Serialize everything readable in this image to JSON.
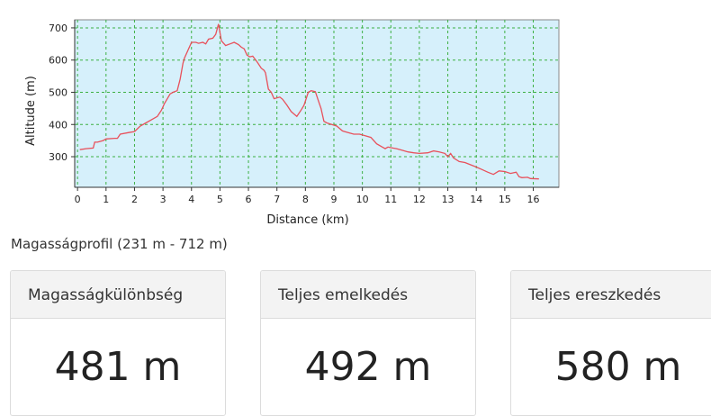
{
  "chart_data": {
    "type": "line",
    "xlabel": "Distance (km)",
    "ylabel": "Altitude (m)",
    "xlim": [
      -0.1,
      16.9
    ],
    "ylim": [
      205,
      725
    ],
    "xticks": [
      "0",
      "1",
      "2",
      "3",
      "4",
      "5",
      "6",
      "7",
      "8",
      "9",
      "10",
      "11",
      "12",
      "13",
      "14",
      "15",
      "16"
    ],
    "yticks": [
      "300",
      "400",
      "500",
      "600",
      "700"
    ],
    "grid": true,
    "colors": {
      "line": "#e8505b",
      "plot_bg": "#d6f0fb",
      "grid": "#3cb043"
    },
    "series": [
      {
        "x": [
          0.08,
          0.3,
          0.55,
          0.6,
          0.7,
          0.9,
          1.0,
          1.3,
          1.4,
          1.5,
          1.8,
          2.0,
          2.2,
          2.4,
          2.6,
          2.8,
          2.95,
          3.05,
          3.25,
          3.35,
          3.5,
          3.6,
          3.7,
          3.75,
          4.0,
          4.15,
          4.25,
          4.4,
          4.5,
          4.6,
          4.75,
          4.85,
          4.95,
          5.05,
          5.2,
          5.35,
          5.5,
          5.65,
          5.75,
          5.85,
          5.95,
          6.05,
          6.15,
          6.3,
          6.45,
          6.55,
          6.6,
          6.7,
          6.8,
          6.9,
          7.1,
          7.2,
          7.35,
          7.5,
          7.7,
          7.85,
          7.95,
          8.1,
          8.2,
          8.35,
          8.45,
          8.55,
          8.65,
          8.75,
          8.85,
          9.1,
          9.3,
          9.5,
          9.7,
          9.9,
          10.1,
          10.3,
          10.5,
          10.7,
          10.8,
          10.9,
          11.0,
          11.2,
          11.4,
          11.6,
          11.8,
          12.0,
          12.3,
          12.5,
          12.7,
          12.9,
          13.0,
          13.1,
          13.2,
          13.4,
          13.6,
          13.8,
          14.0,
          14.2,
          14.4,
          14.6,
          14.8,
          15.0,
          15.2,
          15.4,
          15.5,
          15.6,
          15.8,
          15.9,
          16.2
        ],
        "y": [
          322,
          325,
          327,
          345,
          345,
          350,
          355,
          357,
          357,
          370,
          375,
          378,
          395,
          405,
          415,
          425,
          445,
          465,
          495,
          500,
          505,
          540,
          590,
          605,
          655,
          655,
          652,
          655,
          650,
          665,
          668,
          680,
          712,
          660,
          645,
          650,
          655,
          648,
          640,
          635,
          615,
          610,
          612,
          595,
          575,
          568,
          560,
          510,
          500,
          480,
          485,
          478,
          460,
          440,
          425,
          445,
          460,
          500,
          505,
          502,
          475,
          450,
          410,
          405,
          402,
          395,
          380,
          375,
          370,
          370,
          365,
          360,
          340,
          330,
          325,
          330,
          328,
          325,
          320,
          315,
          312,
          310,
          312,
          318,
          315,
          310,
          300,
          310,
          296,
          285,
          282,
          275,
          268,
          260,
          252,
          245,
          256,
          254,
          248,
          252,
          238,
          235,
          236,
          232,
          231
        ]
      }
    ]
  },
  "caption": "Magasságprofil (231 m - 712 m)",
  "stats": [
    {
      "label": "Magasságkülönbség",
      "value": "481 m"
    },
    {
      "label": "Teljes emelkedés",
      "value": "492 m"
    },
    {
      "label": "Teljes ereszkedés",
      "value": "580 m"
    }
  ]
}
